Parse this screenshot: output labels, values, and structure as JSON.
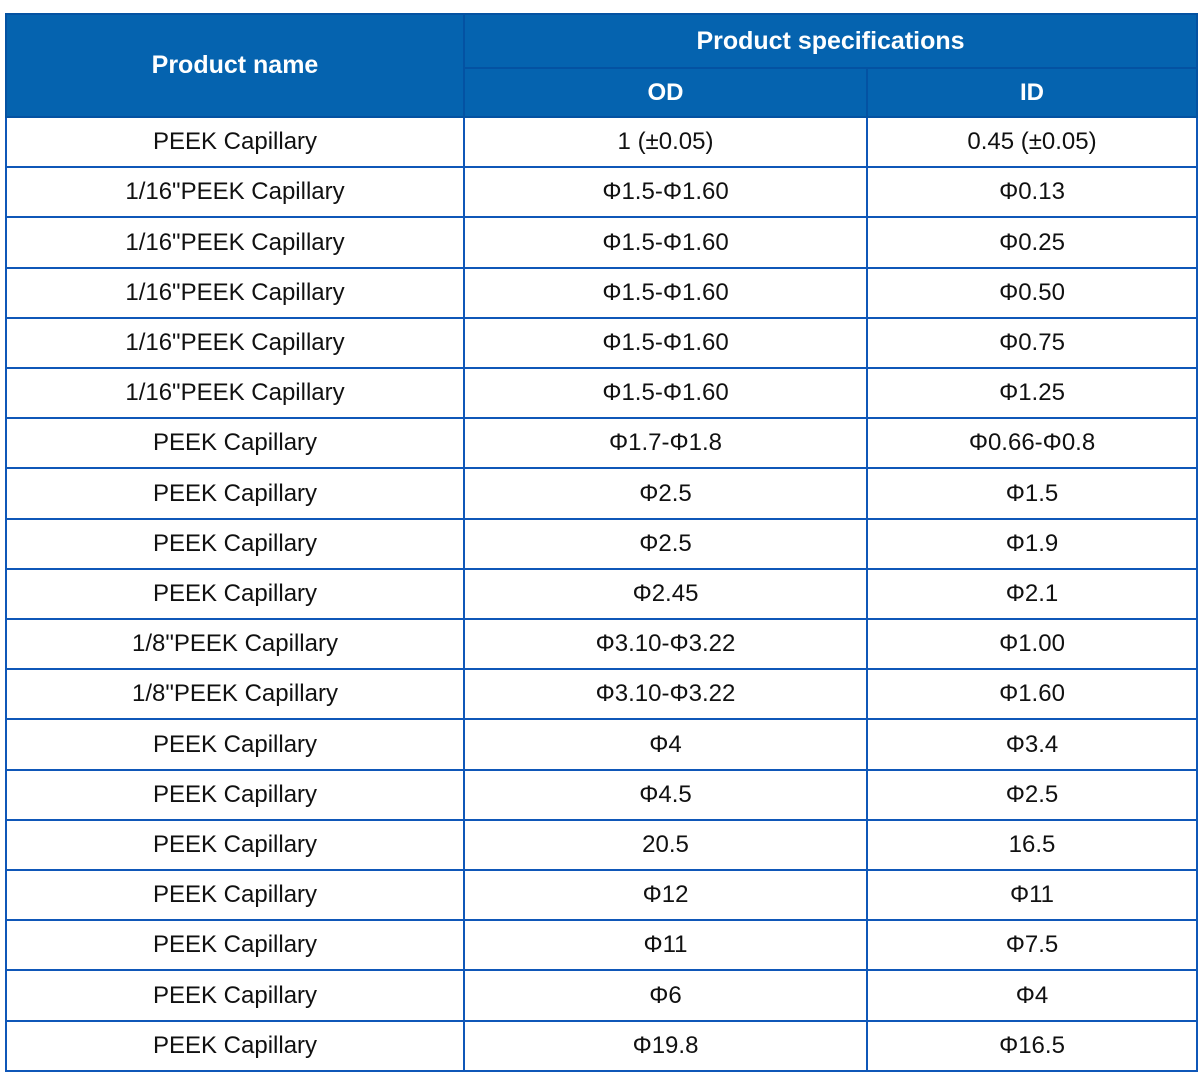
{
  "colors": {
    "header_bg": "#0563af",
    "header_text": "#ffffff",
    "grid_border": "#0f57b8",
    "header_divider": "#0452a2",
    "body_text": "#111111"
  },
  "chart_data": {
    "type": "table",
    "title": "",
    "header": {
      "product_name": "Product name",
      "product_specifications": "Product specifications",
      "od": "OD",
      "id": "ID"
    },
    "columns": [
      "Product name",
      "OD",
      "ID"
    ],
    "rows": [
      [
        "PEEK Capillary",
        "1 (±0.05)",
        "0.45 (±0.05)"
      ],
      [
        "1/16\"PEEK Capillary",
        "Φ1.5-Φ1.60",
        "Φ0.13"
      ],
      [
        "1/16\"PEEK Capillary",
        "Φ1.5-Φ1.60",
        "Φ0.25"
      ],
      [
        "1/16\"PEEK Capillary",
        "Φ1.5-Φ1.60",
        "Φ0.50"
      ],
      [
        "1/16\"PEEK Capillary",
        "Φ1.5-Φ1.60",
        "Φ0.75"
      ],
      [
        "1/16\"PEEK Capillary",
        "Φ1.5-Φ1.60",
        "Φ1.25"
      ],
      [
        "PEEK Capillary",
        "Φ1.7-Φ1.8",
        "Φ0.66-Φ0.8"
      ],
      [
        "PEEK Capillary",
        "Φ2.5",
        "Φ1.5"
      ],
      [
        "PEEK Capillary",
        "Φ2.5",
        "Φ1.9"
      ],
      [
        "PEEK Capillary",
        "Φ2.45",
        "Φ2.1"
      ],
      [
        "1/8\"PEEK Capillary",
        "Φ3.10-Φ3.22",
        "Φ1.00"
      ],
      [
        "1/8\"PEEK Capillary",
        "Φ3.10-Φ3.22",
        "Φ1.60"
      ],
      [
        "PEEK Capillary",
        "Φ4",
        "Φ3.4"
      ],
      [
        "PEEK Capillary",
        "Φ4.5",
        "Φ2.5"
      ],
      [
        "PEEK Capillary",
        "20.5",
        "16.5"
      ],
      [
        "PEEK Capillary",
        "Φ12",
        "Φ11"
      ],
      [
        "PEEK Capillary",
        "Φ11",
        "Φ7.5"
      ],
      [
        "PEEK Capillary",
        "Φ6",
        "Φ4"
      ],
      [
        "PEEK Capillary",
        "Φ19.8",
        "Φ16.5"
      ]
    ]
  }
}
